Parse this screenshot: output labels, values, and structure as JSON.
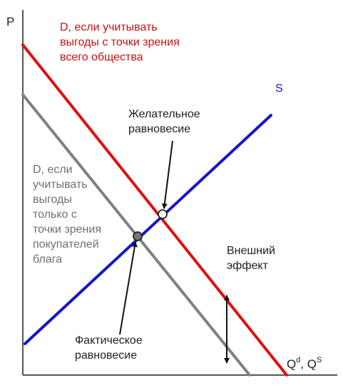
{
  "axes": {
    "y_label": "P",
    "x_label_main": "Q",
    "x_label_sup_d": "d",
    "x_label_sep": ", Q",
    "x_label_sup_s": "S"
  },
  "curves": {
    "social_demand": {
      "label_lines": [
        "D, если учитывать",
        "выгоды с точки зрения",
        "всего общества"
      ],
      "color": "#dd1111"
    },
    "private_demand": {
      "label_lines": [
        "D, если",
        "учитывать",
        "выгоды",
        "только с",
        "точки зрения",
        "покупателей",
        "блага"
      ],
      "color": "#808080"
    },
    "supply": {
      "label": "S",
      "color": "#1515cc"
    }
  },
  "annotations": {
    "desired": [
      "Желательное",
      "равновесие"
    ],
    "actual": [
      "Фактическое",
      "равновесие"
    ],
    "external": [
      "Внешний",
      "эффект"
    ]
  },
  "points": {
    "desired_color": "#ffffff",
    "actual_color": "#777777"
  }
}
